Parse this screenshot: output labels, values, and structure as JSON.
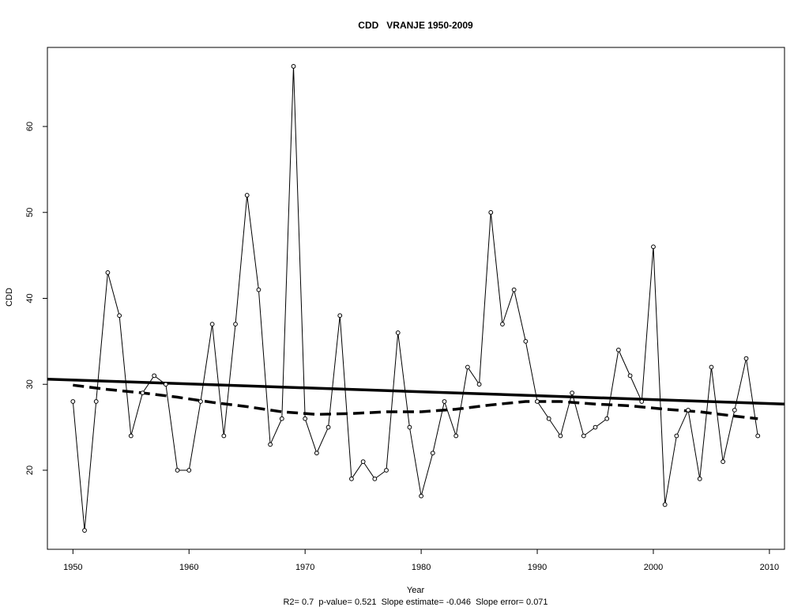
{
  "chart_data": {
    "type": "line",
    "title": "CDD   VRANJE 1950-2009",
    "xlabel": "Year",
    "ylabel": "CDD",
    "subtitle": "R2= 0.7  p-value= 0.521  Slope estimate= -0.046  Slope error= 0.071",
    "xlim": [
      1947.8,
      2011.3
    ],
    "ylim": [
      10.8,
      69.2
    ],
    "xticks": [
      1950,
      1960,
      1970,
      1980,
      1990,
      2000,
      2010
    ],
    "yticks": [
      20,
      30,
      40,
      50,
      60
    ],
    "grid": false,
    "x": [
      1950,
      1951,
      1952,
      1953,
      1954,
      1955,
      1956,
      1957,
      1958,
      1959,
      1960,
      1961,
      1962,
      1963,
      1964,
      1965,
      1966,
      1967,
      1968,
      1969,
      1970,
      1971,
      1972,
      1973,
      1974,
      1975,
      1976,
      1977,
      1978,
      1979,
      1980,
      1981,
      1982,
      1983,
      1984,
      1985,
      1986,
      1987,
      1988,
      1989,
      1990,
      1991,
      1992,
      1993,
      1994,
      1995,
      1996,
      1997,
      1998,
      1999,
      2000,
      2001,
      2002,
      2003,
      2004,
      2005,
      2006,
      2007,
      2008,
      2009
    ],
    "series": [
      {
        "values": [
          28,
          13,
          28,
          43,
          38,
          24,
          29,
          31,
          30,
          20,
          20,
          28,
          37,
          24,
          37,
          52,
          41,
          23,
          26,
          67,
          26,
          22,
          25,
          38,
          19,
          21,
          19,
          20,
          36,
          25,
          17,
          22,
          28,
          24,
          32,
          30,
          50,
          37,
          41,
          35,
          28,
          26,
          24,
          29,
          24,
          25,
          26,
          34,
          31,
          28,
          46,
          16,
          24,
          27,
          19,
          32,
          21,
          27,
          33,
          24
        ],
        "style": "line with open circles",
        "color": "#000000"
      },
      {
        "x": [
          1947.8,
          2011.3
        ],
        "values": [
          30.6,
          27.7
        ],
        "style": "thick solid trend line",
        "color": "#000000"
      },
      {
        "x": [
          1950,
          1953,
          1956,
          1959,
          1962,
          1965,
          1968,
          1971,
          1974,
          1977,
          1980,
          1983,
          1986,
          1989,
          1992,
          1995,
          1998,
          2001,
          2004,
          2007,
          2009
        ],
        "values": [
          29.9,
          29.4,
          29.0,
          28.5,
          27.9,
          27.4,
          26.8,
          26.5,
          26.6,
          26.8,
          26.8,
          27.1,
          27.6,
          28.0,
          28.0,
          27.7,
          27.5,
          27.1,
          26.8,
          26.3,
          26.0
        ],
        "style": "thick dashed smoothed line",
        "color": "#000000"
      }
    ]
  }
}
